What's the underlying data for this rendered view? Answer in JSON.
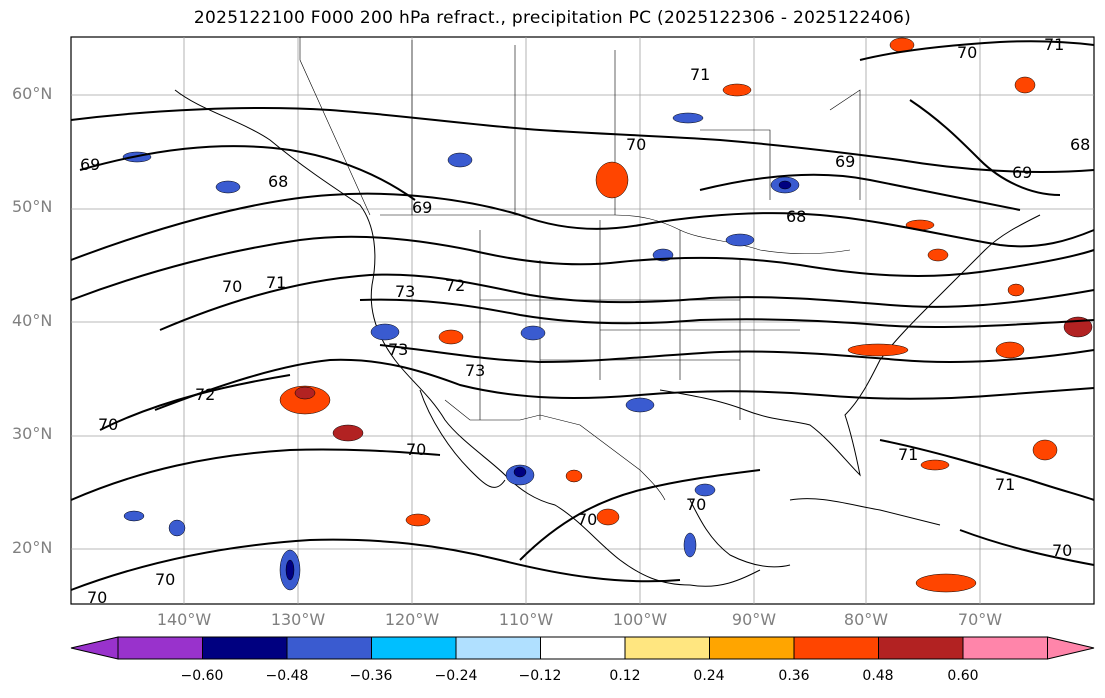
{
  "title": "2025122100 F000 200 hPa refract., precipitation PC (2025122306 - 2025122406)",
  "lat_labels": [
    "60°N",
    "50°N",
    "40°N",
    "30°N",
    "20°N"
  ],
  "lon_labels": [
    "140°W",
    "130°W",
    "120°W",
    "110°W",
    "100°W",
    "90°W",
    "80°W",
    "70°W"
  ],
  "colorbar": {
    "labels": [
      "−0.60",
      "−0.48",
      "−0.36",
      "−0.24",
      "−0.12",
      "0.12",
      "0.24",
      "0.36",
      "0.48",
      "0.60"
    ],
    "colors": [
      "#9932cc",
      "#000080",
      "#3a5bd0",
      "#00bfff",
      "#b0e0ff",
      "#ffffff",
      "#ffe680",
      "#ffa500",
      "#ff4500",
      "#b22222",
      "#ff85aa"
    ]
  },
  "contour_labels": [
    "70",
    "71",
    "69",
    "68",
    "69",
    "70",
    "71",
    "73",
    "72",
    "73",
    "73",
    "72",
    "70",
    "70",
    "70",
    "71",
    "71",
    "70",
    "70",
    "71",
    "70",
    "69",
    "68",
    "69",
    "68",
    "70",
    "70"
  ]
}
